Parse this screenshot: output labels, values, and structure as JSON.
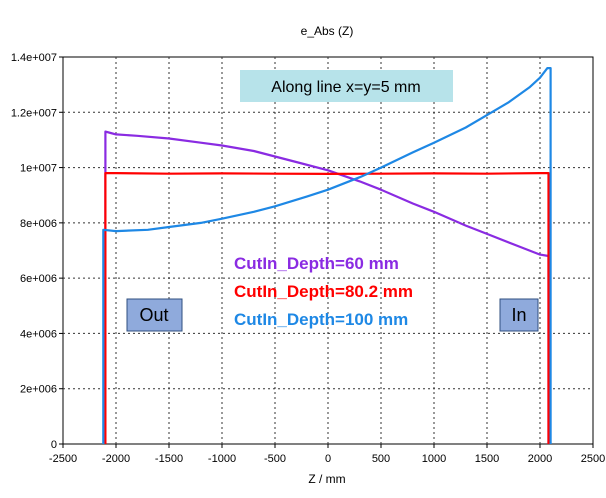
{
  "chart_data": {
    "type": "line",
    "title": "e_Abs (Z)",
    "xlabel": "Z / mm",
    "ylabel": "",
    "xlim": [
      -2500,
      2500
    ],
    "ylim": [
      0,
      14000000
    ],
    "grid": true,
    "x_ticks": [
      "-2500",
      "-2000",
      "-1500",
      "-1000",
      "-500",
      "0",
      "500",
      "1000",
      "1500",
      "2000",
      "2500"
    ],
    "y_ticks": [
      "0",
      "2e+006",
      "4e+006",
      "6e+006",
      "8e+006",
      "1e+007",
      "1.2e+007",
      "1.4e+007"
    ],
    "annotation": "Along line x=y=5 mm",
    "side_labels": {
      "left": "Out",
      "right": "In"
    },
    "series": [
      {
        "name": "CutIn_Depth=60 mm",
        "color": "#8a2be2",
        "x": [
          -2100,
          -2100,
          -2050,
          -2000,
          -1800,
          -1500,
          -1200,
          -1000,
          -700,
          -500,
          -300,
          0,
          300,
          500,
          800,
          1000,
          1300,
          1500,
          1800,
          2000,
          2080,
          2080
        ],
        "y": [
          0,
          11300000,
          11250000,
          11200000,
          11150000,
          11050000,
          10900000,
          10800000,
          10600000,
          10400000,
          10200000,
          9900000,
          9500000,
          9200000,
          8700000,
          8400000,
          7900000,
          7600000,
          7150000,
          6850000,
          6800000,
          0
        ]
      },
      {
        "name": "CutIn_Depth=80.2 mm",
        "color": "#ff0000",
        "x": [
          -2100,
          -2100,
          -2000,
          -1500,
          -1000,
          -500,
          0,
          500,
          1000,
          1500,
          2000,
          2080,
          2080
        ],
        "y": [
          0,
          9800000,
          9800000,
          9780000,
          9790000,
          9780000,
          9770000,
          9780000,
          9790000,
          9780000,
          9800000,
          9800000,
          0
        ]
      },
      {
        "name": "CutIn_Depth=100 mm",
        "color": "#1e88e5",
        "x": [
          -2120,
          -2120,
          -2000,
          -1700,
          -1500,
          -1200,
          -1000,
          -700,
          -500,
          -200,
          0,
          300,
          500,
          800,
          1000,
          1300,
          1500,
          1700,
          1900,
          2000,
          2070,
          2100,
          2100
        ],
        "y": [
          0,
          7750000,
          7700000,
          7750000,
          7850000,
          8000000,
          8150000,
          8400000,
          8600000,
          8950000,
          9200000,
          9650000,
          10000000,
          10550000,
          10900000,
          11450000,
          11900000,
          12350000,
          12900000,
          13250000,
          13600000,
          13600000,
          0
        ]
      }
    ]
  }
}
